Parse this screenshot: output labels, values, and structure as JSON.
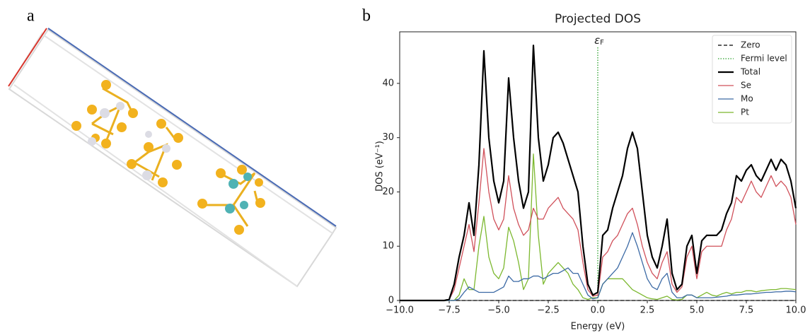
{
  "panel_labels": {
    "a": "a",
    "b": "b"
  },
  "chart_data": {
    "type": "line",
    "title": "Projected DOS",
    "x_label": "Energy (eV)",
    "y_label": "DOS (eV⁻¹)",
    "annotation": {
      "symbol": "ε",
      "subscript": "F"
    },
    "xlim": [
      -10,
      10
    ],
    "ylim": [
      0,
      49.5
    ],
    "xticks": [
      {
        "value": -10,
        "label": "−10.0"
      },
      {
        "value": -7.5,
        "label": "−7.5"
      },
      {
        "value": -5,
        "label": "−5.0"
      },
      {
        "value": -2.5,
        "label": "−2.5"
      },
      {
        "value": 0,
        "label": "0.0"
      },
      {
        "value": 2.5,
        "label": "2.5"
      },
      {
        "value": 5,
        "label": "5.0"
      },
      {
        "value": 7.5,
        "label": "7.5"
      },
      {
        "value": 10,
        "label": "10.0"
      }
    ],
    "yticks": [
      0,
      10,
      20,
      30,
      40
    ],
    "legend": "upper right",
    "reference_lines": [
      {
        "name": "Zero",
        "orientation": "horizontal",
        "value": 0,
        "color": "#000000",
        "style": "dashed"
      },
      {
        "name": "Fermi level",
        "orientation": "vertical",
        "value": 0,
        "color": "#2ca02c",
        "style": "dotted"
      }
    ],
    "x": [
      -10,
      -9.75,
      -9.5,
      -9.25,
      -9,
      -8.75,
      -8.5,
      -8.25,
      -8,
      -7.75,
      -7.5,
      -7.25,
      -7,
      -6.75,
      -6.5,
      -6.25,
      -6,
      -5.75,
      -5.5,
      -5.25,
      -5,
      -4.75,
      -4.5,
      -4.25,
      -4,
      -3.75,
      -3.5,
      -3.25,
      -3,
      -2.75,
      -2.5,
      -2.25,
      -2,
      -1.75,
      -1.5,
      -1.25,
      -1,
      -0.75,
      -0.5,
      -0.25,
      0,
      0.25,
      0.5,
      0.75,
      1,
      1.25,
      1.5,
      1.75,
      2,
      2.25,
      2.5,
      2.75,
      3,
      3.25,
      3.5,
      3.75,
      4,
      4.25,
      4.5,
      4.75,
      5,
      5.25,
      5.5,
      5.75,
      6,
      6.25,
      6.5,
      6.75,
      7,
      7.25,
      7.5,
      7.75,
      8,
      8.25,
      8.5,
      8.75,
      9,
      9.25,
      9.5,
      9.75,
      10
    ],
    "series": [
      {
        "name": "Total",
        "color": "#000000",
        "width": 2.2,
        "values": [
          0,
          0,
          0,
          0,
          0,
          0,
          0,
          0,
          0,
          0,
          0.2,
          3,
          8,
          12,
          18,
          12,
          25,
          46,
          30,
          22,
          18,
          22,
          41,
          30,
          22,
          17,
          20,
          47,
          30,
          22,
          25,
          30,
          31,
          29,
          26,
          23,
          20,
          10,
          3,
          1,
          1.5,
          12,
          13,
          17,
          20,
          23,
          28,
          31,
          28,
          20,
          12,
          8,
          6,
          10,
          15,
          5,
          2,
          3,
          10,
          12,
          5,
          11,
          12,
          12,
          12,
          13,
          16,
          18,
          23,
          22,
          24,
          25,
          23,
          22,
          24,
          26,
          24,
          26,
          25,
          22,
          17
        ]
      },
      {
        "name": "Se",
        "color": "#d0505a",
        "width": 1.3,
        "values": [
          0,
          0,
          0,
          0,
          0,
          0,
          0,
          0,
          0,
          0,
          0.2,
          2,
          6,
          10,
          14,
          9,
          18,
          28,
          20,
          15,
          13,
          15,
          23,
          17,
          14,
          12,
          13,
          17,
          15,
          15,
          17,
          18,
          19,
          17,
          16,
          15,
          13,
          7,
          2,
          0.8,
          1,
          8,
          9,
          11,
          12,
          14,
          16,
          17,
          14,
          10,
          7,
          5,
          4,
          7,
          9,
          3,
          1.5,
          2.5,
          8,
          10,
          4,
          9,
          10,
          10,
          10,
          10,
          13,
          15,
          19,
          18,
          20,
          22,
          20,
          19,
          21,
          23,
          21,
          22,
          21,
          19,
          14
        ]
      },
      {
        "name": "Mo",
        "color": "#3c6aa5",
        "width": 1.3,
        "values": [
          0,
          0,
          0,
          0,
          0,
          0,
          0,
          0,
          0,
          0,
          0,
          0,
          0.3,
          1.5,
          2.5,
          2,
          1.5,
          1.5,
          1.5,
          1.5,
          2,
          2.5,
          4.5,
          3.5,
          3.5,
          4,
          4,
          4.5,
          4.5,
          4,
          4.5,
          5,
          5,
          5.5,
          6,
          5,
          5,
          3,
          1,
          0.3,
          0.5,
          3,
          4,
          5,
          6,
          8,
          10,
          12.5,
          10,
          7,
          4,
          2.5,
          2,
          4,
          5,
          1.5,
          0.5,
          0.5,
          1,
          1,
          0.5,
          0.5,
          0.5,
          0.5,
          0.6,
          0.7,
          0.8,
          1,
          1,
          1.1,
          1.2,
          1.2,
          1.3,
          1.4,
          1.5,
          1.5,
          1.6,
          1.6,
          1.7,
          1.7,
          1.6
        ]
      },
      {
        "name": "Pt",
        "color": "#7cb82f",
        "width": 1.3,
        "values": [
          0,
          0,
          0,
          0,
          0,
          0,
          0,
          0,
          0,
          0,
          0,
          0,
          1,
          4,
          2,
          2,
          10,
          15.5,
          8,
          5,
          4,
          6,
          13.5,
          11,
          7,
          2,
          4,
          27,
          12,
          3,
          5,
          6,
          7,
          6,
          5,
          3,
          2,
          0.5,
          0.2,
          0.5,
          0.5,
          3,
          4,
          4,
          4,
          4,
          3,
          2,
          1.5,
          1,
          0.5,
          0.3,
          0.2,
          0.5,
          0.8,
          0.2,
          0.1,
          0.2,
          1,
          1,
          0.5,
          1,
          1.5,
          1,
          0.8,
          1.2,
          1.5,
          1.2,
          1.5,
          1.5,
          1.8,
          1.8,
          1.6,
          1.8,
          1.9,
          2,
          2,
          2.2,
          2.2,
          2.1,
          2
        ]
      }
    ]
  }
}
